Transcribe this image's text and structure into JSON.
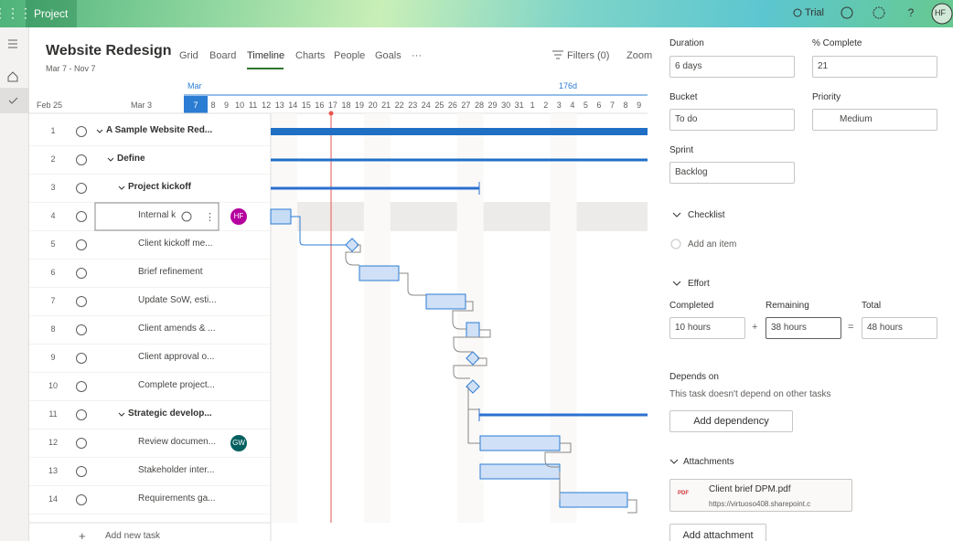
{
  "app_bar": {
    "app_name": "Project",
    "trial": "Trial",
    "avatar": "HF"
  },
  "project": {
    "title": "Website Redesign",
    "dates": "Mar 7 - Nov 7"
  },
  "tabs": [
    "Grid",
    "Board",
    "Timeline",
    "Charts",
    "People",
    "Goals",
    "···"
  ],
  "toolbar": {
    "filters": "Filters (0)",
    "zoom": "Zoom"
  },
  "timeline_header": {
    "week_labels": [
      "Feb 25",
      "Mar 3"
    ],
    "month": "Mar",
    "duration_marker": "176d",
    "days": [
      7,
      8,
      9,
      10,
      11,
      12,
      13,
      14,
      15,
      16,
      17,
      18,
      19,
      20,
      21,
      22,
      23,
      24,
      25,
      26,
      27,
      28,
      29,
      30,
      31,
      1,
      2,
      3,
      4,
      5,
      6,
      7,
      8,
      9
    ]
  },
  "tasks": [
    {
      "number": 1,
      "name": "A Sample Website Red..."
    },
    {
      "number": 2,
      "name": "Define"
    },
    {
      "number": 3,
      "name": "Project kickoff"
    },
    {
      "number": 4,
      "name": "Internal k",
      "assignee": "HF"
    },
    {
      "number": 5,
      "name": "Client kickoff me..."
    },
    {
      "number": 6,
      "name": "Brief refinement"
    },
    {
      "number": 7,
      "name": "Update SoW, esti..."
    },
    {
      "number": 8,
      "name": "Client amends & ..."
    },
    {
      "number": 9,
      "name": "Client approval o..."
    },
    {
      "number": 10,
      "name": "Complete project..."
    },
    {
      "number": 11,
      "name": "Strategic develop..."
    },
    {
      "number": 12,
      "name": "Review documen...",
      "assignee": "GW"
    },
    {
      "number": 13,
      "name": "Stakeholder inter..."
    },
    {
      "number": 14,
      "name": "Requirements ga..."
    }
  ],
  "add_task": "Add new task",
  "details": {
    "duration": {
      "label": "Duration",
      "value": "6 days"
    },
    "percent_complete": {
      "label": "% Complete",
      "value": 21
    },
    "bucket": {
      "label": "Bucket",
      "value": "To do"
    },
    "priority": {
      "label": "Priority",
      "value": "Medium"
    },
    "sprint": {
      "label": "Sprint",
      "value": "Backlog"
    },
    "checklist": {
      "title": "Checklist",
      "add_item": "Add an item"
    },
    "effort": {
      "title": "Effort",
      "completed": {
        "label": "Completed",
        "value": "10 hours"
      },
      "remaining": {
        "label": "Remaining",
        "value": "38 hours"
      },
      "total": {
        "label": "Total",
        "value": "48 hours"
      },
      "plus": "+",
      "equals": "="
    },
    "depends_on": {
      "title": "Depends on",
      "text": "This task doesn't depend on other tasks",
      "button": "Add dependency"
    },
    "attachments": {
      "title": "Attachments",
      "file": {
        "icon": "PDF",
        "name": "Client brief DPM.pdf",
        "url": "https://virtuoso408.sharepoint.c"
      },
      "button": "Add attachment"
    }
  }
}
